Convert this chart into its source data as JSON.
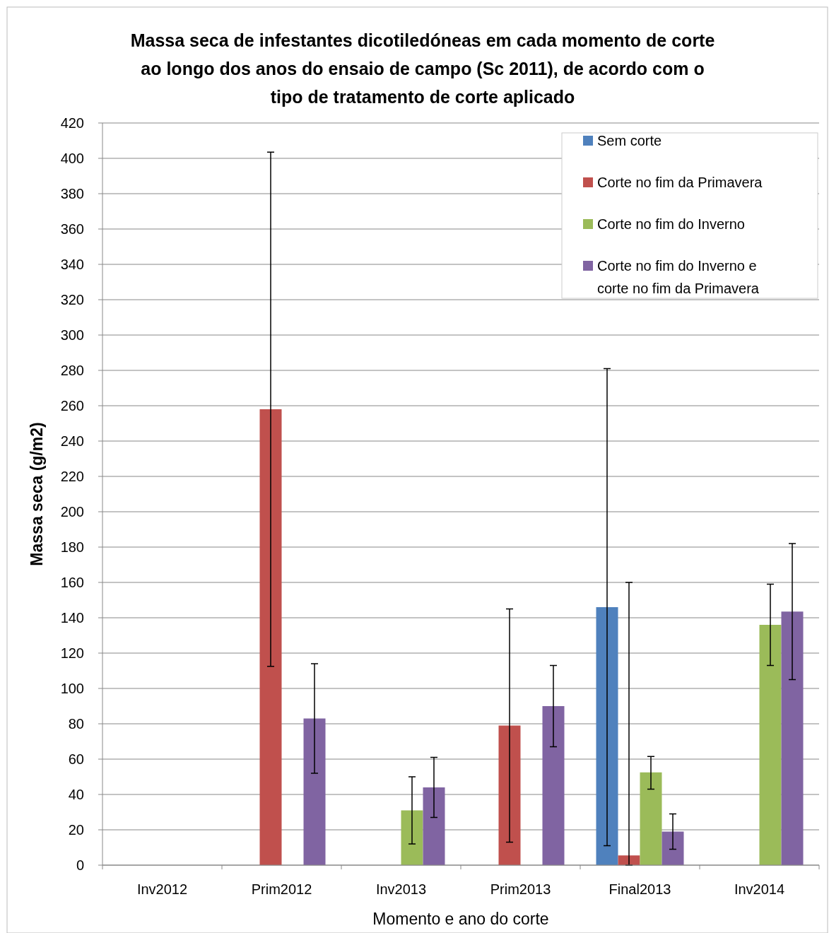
{
  "chart_data": {
    "type": "bar",
    "title": "Massa seca de infestantes dicotiledóneas em cada momento de corte ao longo dos anos do ensaio de campo (Sc 2011), de acordo com o tipo de tratamento de corte aplicado",
    "xlabel": "Momento e ano do corte",
    "ylabel": "Massa seca (g/m2)",
    "categories": [
      "Inv2012",
      "Prim2012",
      "Inv2013",
      "Prim2013",
      "Final2013",
      "Inv2014"
    ],
    "series": [
      {
        "name": "Sem corte",
        "color": "#4f81bd",
        "values": [
          null,
          null,
          null,
          null,
          146,
          null
        ],
        "errors": [
          null,
          null,
          null,
          null,
          [
            11,
            281
          ],
          null
        ]
      },
      {
        "name": "Corte no fim da Primavera",
        "color": "#c0504d",
        "values": [
          null,
          258,
          null,
          79,
          5.5,
          null
        ],
        "errors": [
          null,
          [
            112.5,
            403.5
          ],
          null,
          [
            13,
            145
          ],
          [
            0,
            160
          ],
          null
        ]
      },
      {
        "name": "Corte no fim do Inverno",
        "color": "#9bbb59",
        "values": [
          null,
          null,
          31,
          null,
          52.5,
          136
        ],
        "errors": [
          null,
          null,
          [
            12,
            50
          ],
          null,
          [
            43,
            61.5
          ],
          [
            113,
            159
          ]
        ]
      },
      {
        "name": "Corte no fim do Inverno e corte no fim da Primavera",
        "color": "#8064a2",
        "values": [
          null,
          83,
          44,
          90,
          19,
          143.5
        ],
        "errors": [
          null,
          [
            52,
            114
          ],
          [
            27,
            61
          ],
          [
            67,
            113
          ],
          [
            9,
            29
          ],
          [
            105,
            182
          ]
        ]
      }
    ],
    "ylim": [
      0,
      420
    ],
    "yticks": [
      0,
      20,
      40,
      60,
      80,
      100,
      120,
      140,
      160,
      180,
      200,
      220,
      240,
      260,
      280,
      300,
      320,
      340,
      360,
      380,
      400,
      420
    ],
    "grid": "y",
    "legend": "top right"
  }
}
